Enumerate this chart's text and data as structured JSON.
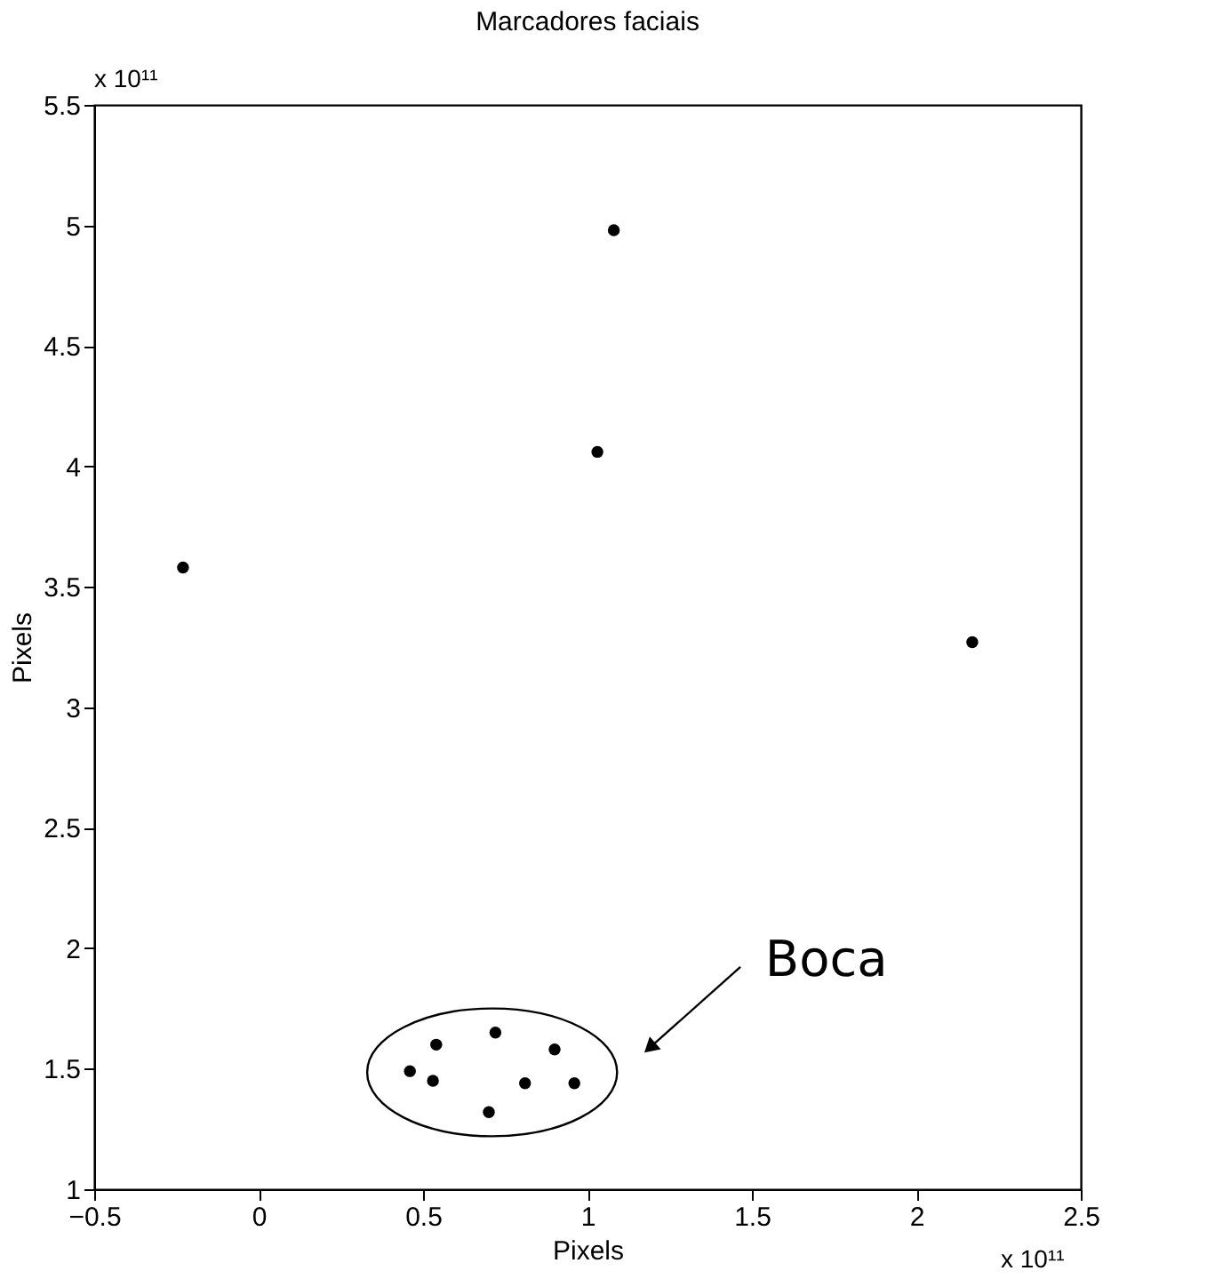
{
  "chart_data": {
    "type": "scatter",
    "title": "Marcadores faciais",
    "xlabel": "Pixels",
    "ylabel": "Pixels",
    "x": [
      -0.23,
      1.08,
      1.03,
      2.17,
      0.46,
      0.54,
      0.53,
      0.72,
      0.9,
      0.81,
      0.96,
      0.7
    ],
    "series": [
      {
        "color": "#000000",
        "values": [
          3.58,
          4.98,
          4.06,
          3.27,
          1.49,
          1.6,
          1.45,
          1.65,
          1.58,
          1.44,
          1.44,
          1.32
        ]
      }
    ],
    "xlim": [
      -0.5,
      2.5
    ],
    "xticks": [
      -0.5,
      0,
      0.5,
      1,
      1.5,
      2,
      2.5
    ],
    "ylim": [
      1,
      5.5
    ],
    "yticks": [
      1,
      1.5,
      2,
      2.5,
      3,
      3.5,
      4,
      4.5,
      5,
      5.5
    ],
    "grid": false,
    "legend": false,
    "marker": "circle",
    "annotations": [
      "x 10¹¹",
      "x 10¹¹",
      "Boca"
    ]
  }
}
